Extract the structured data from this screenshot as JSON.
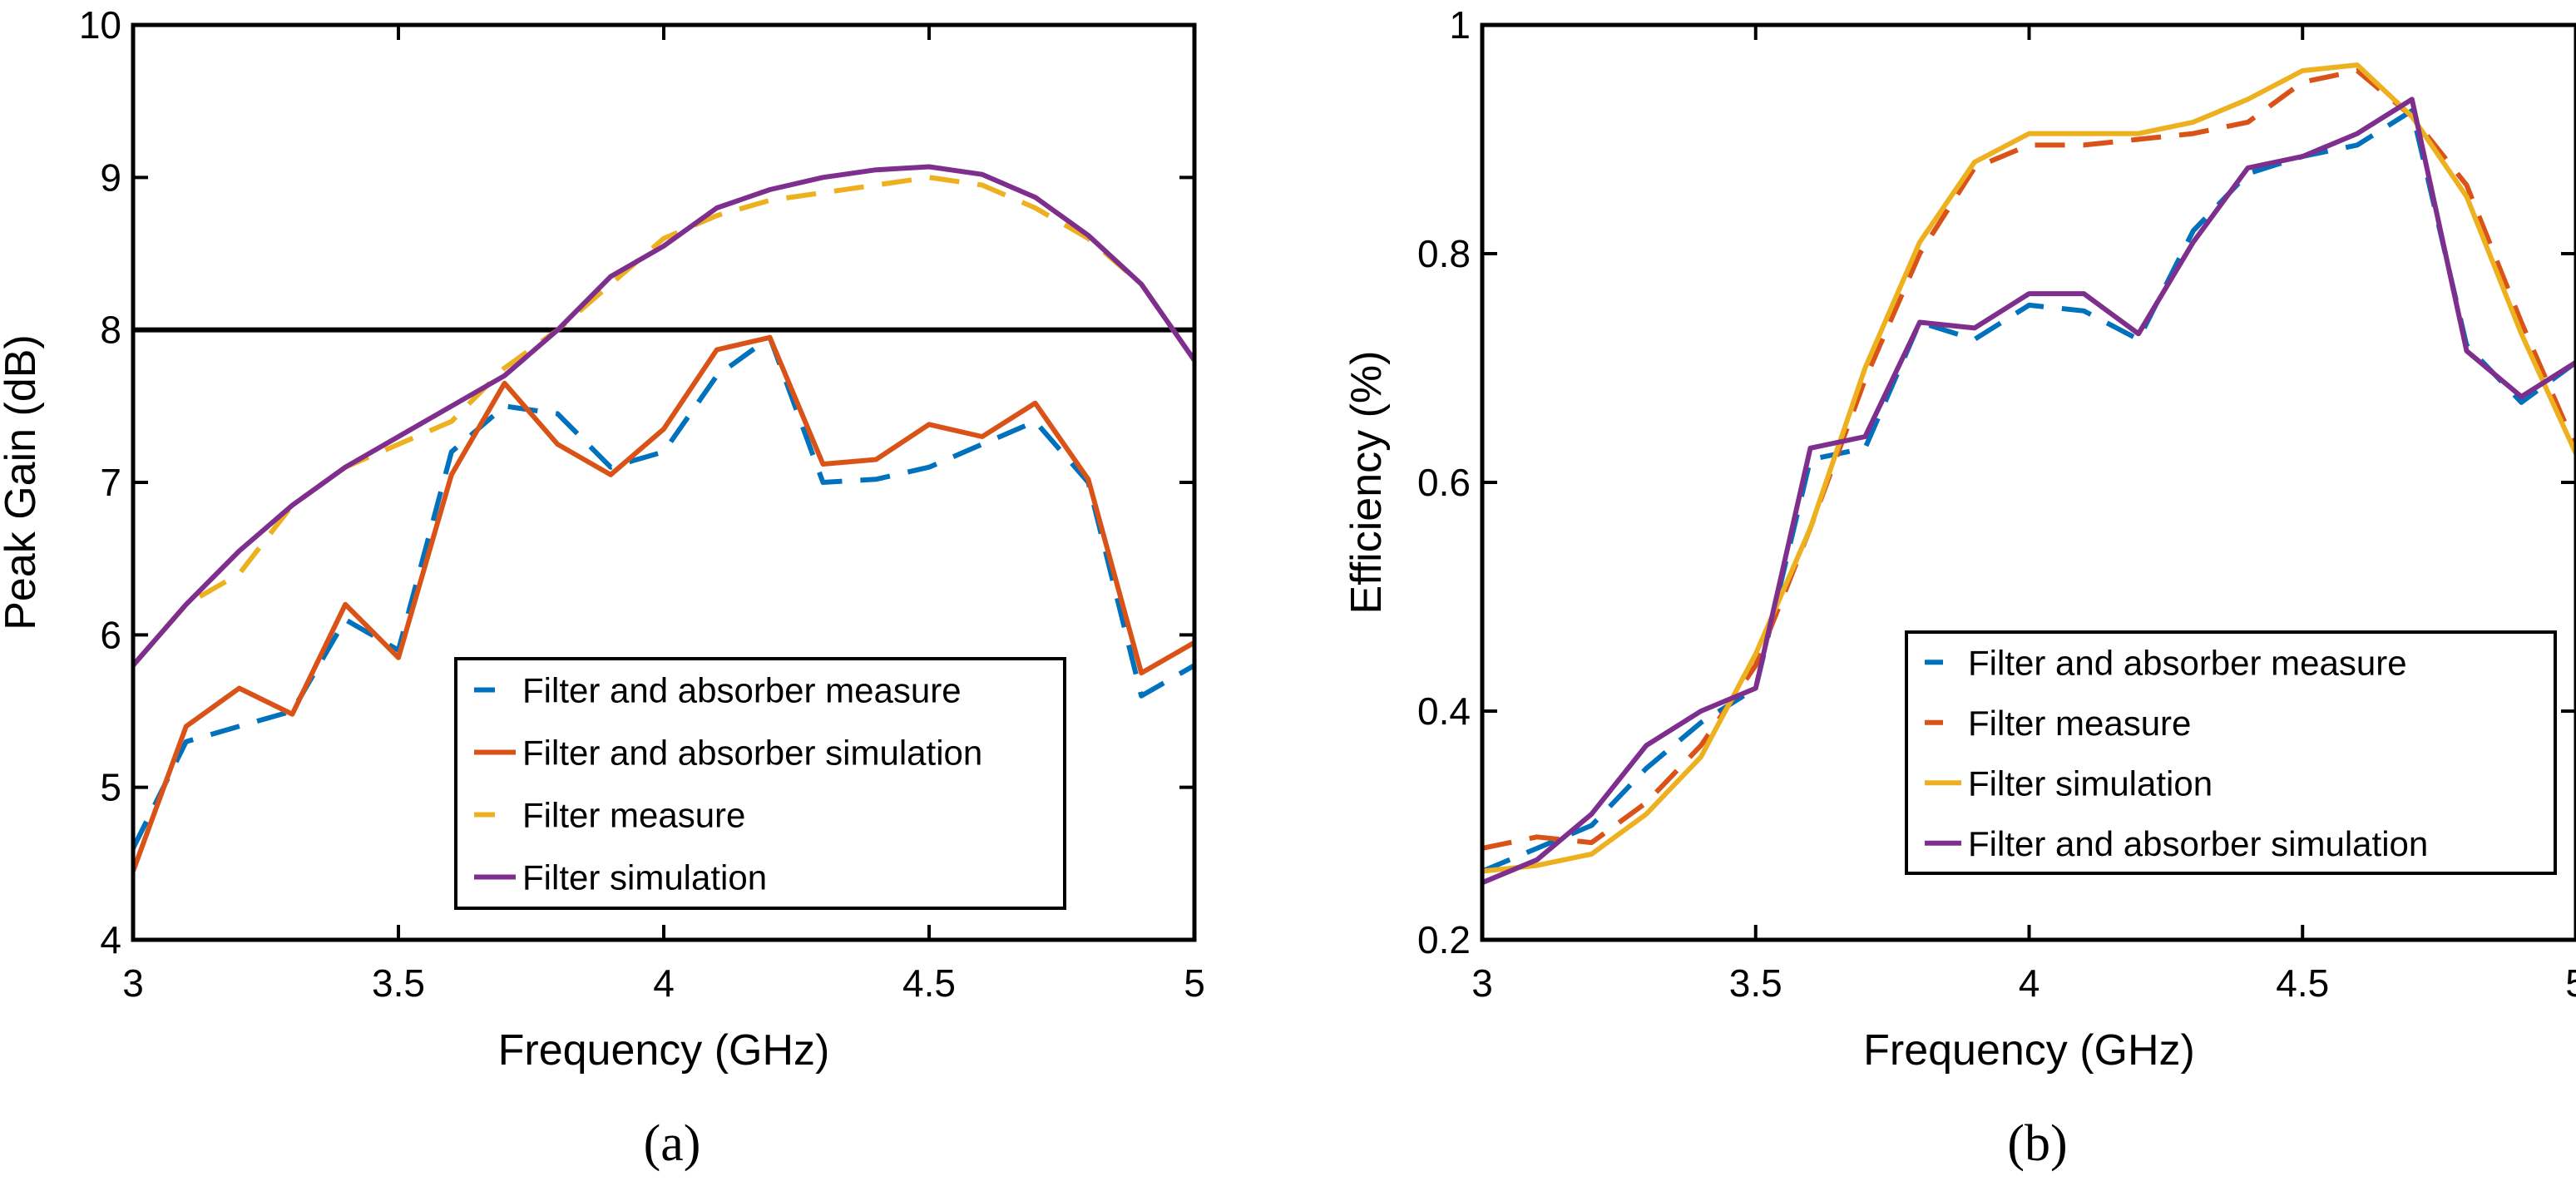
{
  "chart_data": [
    {
      "id": "a",
      "type": "line",
      "panel_label": "(a)",
      "xlabel": "Frequency (GHz)",
      "ylabel": "Peak Gain (dB)",
      "xlim": [
        3,
        5
      ],
      "ylim": [
        4,
        10
      ],
      "xticks": [
        3,
        3.5,
        4,
        4.5,
        5
      ],
      "xtick_labels": [
        "3",
        "3.5",
        "4",
        "4.5",
        "5"
      ],
      "yticks": [
        4,
        5,
        6,
        7,
        8,
        9,
        10
      ],
      "ytick_labels": [
        "4",
        "5",
        "6",
        "7",
        "8",
        "9",
        "10"
      ],
      "grid": false,
      "legend_position": "bottom-right",
      "reference_line": {
        "y": 8,
        "color": "#000000"
      },
      "series": [
        {
          "name": "Filter and absorber measure",
          "color": "#0072BD",
          "dash": true,
          "x": [
            3,
            3.1,
            3.2,
            3.3,
            3.4,
            3.5,
            3.6,
            3.7,
            3.8,
            3.9,
            4.0,
            4.1,
            4.2,
            4.3,
            4.4,
            4.5,
            4.6,
            4.7,
            4.8,
            4.9,
            5.0
          ],
          "y": [
            4.6,
            5.3,
            5.4,
            5.5,
            6.1,
            5.9,
            7.2,
            7.5,
            7.45,
            7.1,
            7.2,
            7.7,
            7.95,
            7.0,
            7.02,
            7.1,
            7.25,
            7.4,
            7.0,
            5.6,
            5.8
          ]
        },
        {
          "name": "Filter and absorber simulation",
          "color": "#D95319",
          "dash": false,
          "x": [
            3,
            3.1,
            3.2,
            3.3,
            3.4,
            3.5,
            3.6,
            3.7,
            3.8,
            3.9,
            4.0,
            4.1,
            4.2,
            4.3,
            4.4,
            4.5,
            4.6,
            4.7,
            4.8,
            4.9,
            5.0
          ],
          "y": [
            4.45,
            5.4,
            5.65,
            5.48,
            6.2,
            5.85,
            7.05,
            7.65,
            7.25,
            7.05,
            7.35,
            7.87,
            7.95,
            7.12,
            7.15,
            7.38,
            7.3,
            7.52,
            7.02,
            5.75,
            5.95
          ]
        },
        {
          "name": "Filter measure",
          "color": "#EDB120",
          "dash": true,
          "x": [
            3,
            3.1,
            3.2,
            3.3,
            3.4,
            3.5,
            3.6,
            3.7,
            3.8,
            3.9,
            4.0,
            4.1,
            4.2,
            4.3,
            4.4,
            4.5,
            4.6,
            4.7,
            4.8,
            4.9,
            5.0
          ],
          "y": [
            5.8,
            6.2,
            6.4,
            6.85,
            7.1,
            7.25,
            7.4,
            7.75,
            8.0,
            8.3,
            8.6,
            8.75,
            8.85,
            8.9,
            8.95,
            9.0,
            8.95,
            8.8,
            8.6,
            8.3,
            7.8
          ]
        },
        {
          "name": "Filter simulation",
          "color": "#7E2F8E",
          "dash": false,
          "x": [
            3,
            3.1,
            3.2,
            3.3,
            3.4,
            3.5,
            3.6,
            3.7,
            3.8,
            3.9,
            4.0,
            4.1,
            4.2,
            4.3,
            4.4,
            4.5,
            4.6,
            4.7,
            4.8,
            4.9,
            5.0
          ],
          "y": [
            5.8,
            6.2,
            6.55,
            6.85,
            7.1,
            7.3,
            7.5,
            7.7,
            8.0,
            8.35,
            8.55,
            8.8,
            8.92,
            9.0,
            9.05,
            9.07,
            9.02,
            8.87,
            8.62,
            8.3,
            7.8
          ]
        }
      ]
    },
    {
      "id": "b",
      "type": "line",
      "panel_label": "(b)",
      "xlabel": "Frequency (GHz)",
      "ylabel": "Efficiency (%)",
      "xlim": [
        3,
        5
      ],
      "ylim": [
        0.2,
        1
      ],
      "xticks": [
        3,
        3.5,
        4,
        4.5,
        5
      ],
      "xtick_labels": [
        "3",
        "3.5",
        "4",
        "4.5",
        "5"
      ],
      "yticks": [
        0.2,
        0.4,
        0.6,
        0.8,
        1
      ],
      "ytick_labels": [
        "0.2",
        "0.4",
        "0.6",
        "0.8",
        "1"
      ],
      "grid": false,
      "legend_position": "bottom-right",
      "series": [
        {
          "name": "Filter and absorber measure",
          "color": "#0072BD",
          "dash": true,
          "x": [
            3,
            3.1,
            3.2,
            3.3,
            3.4,
            3.5,
            3.6,
            3.7,
            3.8,
            3.9,
            4.0,
            4.1,
            4.2,
            4.3,
            4.4,
            4.5,
            4.6,
            4.7,
            4.8,
            4.9,
            5.0
          ],
          "y": [
            0.26,
            0.28,
            0.3,
            0.35,
            0.39,
            0.42,
            0.62,
            0.63,
            0.74,
            0.725,
            0.755,
            0.75,
            0.725,
            0.82,
            0.87,
            0.885,
            0.895,
            0.925,
            0.72,
            0.67,
            0.705
          ]
        },
        {
          "name": "Filter measure",
          "color": "#D95319",
          "dash": true,
          "x": [
            3,
            3.1,
            3.2,
            3.3,
            3.4,
            3.5,
            3.6,
            3.7,
            3.8,
            3.9,
            4.0,
            4.1,
            4.2,
            4.3,
            4.4,
            4.5,
            4.6,
            4.7,
            4.8,
            4.9,
            5.0
          ],
          "y": [
            0.28,
            0.29,
            0.285,
            0.32,
            0.37,
            0.44,
            0.56,
            0.69,
            0.8,
            0.875,
            0.895,
            0.895,
            0.9,
            0.905,
            0.915,
            0.95,
            0.96,
            0.92,
            0.86,
            0.74,
            0.63
          ]
        },
        {
          "name": "Filter simulation",
          "color": "#EDB120",
          "dash": false,
          "x": [
            3,
            3.1,
            3.2,
            3.3,
            3.4,
            3.5,
            3.6,
            3.7,
            3.8,
            3.9,
            4.0,
            4.1,
            4.2,
            4.3,
            4.4,
            4.5,
            4.6,
            4.7,
            4.8,
            4.9,
            5.0
          ],
          "y": [
            0.26,
            0.265,
            0.275,
            0.31,
            0.36,
            0.45,
            0.56,
            0.7,
            0.81,
            0.88,
            0.905,
            0.905,
            0.905,
            0.915,
            0.935,
            0.96,
            0.965,
            0.92,
            0.85,
            0.73,
            0.625
          ]
        },
        {
          "name": "Filter and absorber simulation",
          "color": "#7E2F8E",
          "dash": false,
          "x": [
            3,
            3.1,
            3.2,
            3.3,
            3.4,
            3.5,
            3.6,
            3.7,
            3.8,
            3.9,
            4.0,
            4.1,
            4.2,
            4.3,
            4.4,
            4.5,
            4.6,
            4.7,
            4.8,
            4.9,
            5.0
          ],
          "y": [
            0.25,
            0.27,
            0.31,
            0.37,
            0.4,
            0.42,
            0.63,
            0.64,
            0.74,
            0.735,
            0.765,
            0.765,
            0.73,
            0.81,
            0.875,
            0.885,
            0.905,
            0.935,
            0.715,
            0.675,
            0.705
          ]
        }
      ]
    }
  ]
}
